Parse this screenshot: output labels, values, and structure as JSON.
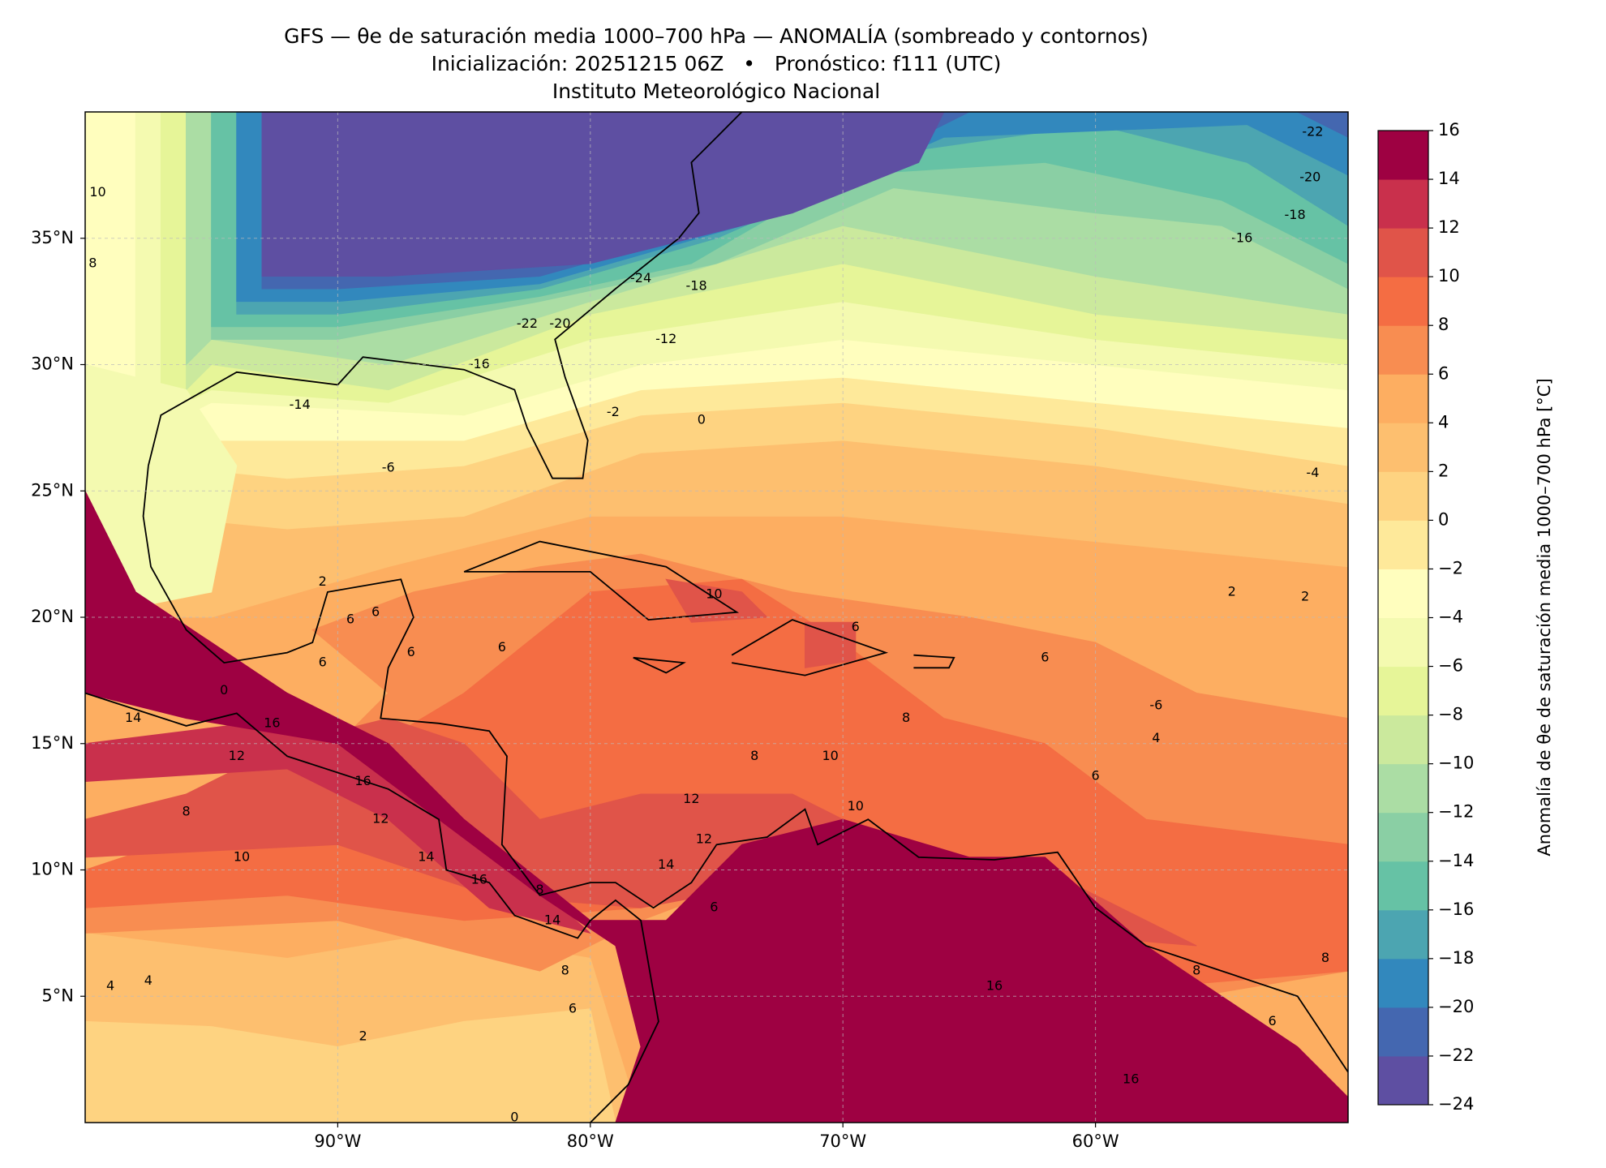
{
  "chart_data": {
    "type": "map",
    "title": "GFS — θe de saturación media 1000–700 hPa — ANOMALÍA (sombreado y contornos)",
    "subtitle": "Inicialización: 20251215 06Z   •   Pronóstico: f111 (UTC)",
    "caption": "Instituto Meteorológico Nacional",
    "xlim": [
      -100,
      -50
    ],
    "ylim": [
      0,
      40
    ],
    "xticks": [
      {
        "value": -90,
        "label": "90°W"
      },
      {
        "value": -80,
        "label": "80°W"
      },
      {
        "value": -70,
        "label": "70°W"
      },
      {
        "value": -60,
        "label": "60°W"
      }
    ],
    "yticks": [
      {
        "value": 5,
        "label": "5°N"
      },
      {
        "value": 10,
        "label": "10°N"
      },
      {
        "value": 15,
        "label": "15°N"
      },
      {
        "value": 20,
        "label": "20°N"
      },
      {
        "value": 25,
        "label": "25°N"
      },
      {
        "value": 30,
        "label": "30°N"
      },
      {
        "value": 35,
        "label": "35°N"
      }
    ],
    "grid": true,
    "colorbar": {
      "label": "Anomalía de θe de saturación media 1000–700 hPa [°C]",
      "lim": [
        -24,
        16
      ],
      "ticks": [
        {
          "value": -24,
          "label": "−24"
        },
        {
          "value": -22,
          "label": "−22"
        },
        {
          "value": -20,
          "label": "−20"
        },
        {
          "value": -18,
          "label": "−18"
        },
        {
          "value": -16,
          "label": "−16"
        },
        {
          "value": -14,
          "label": "−14"
        },
        {
          "value": -12,
          "label": "−12"
        },
        {
          "value": -10,
          "label": "−10"
        },
        {
          "value": -8,
          "label": "−8"
        },
        {
          "value": -6,
          "label": "−6"
        },
        {
          "value": -4,
          "label": "−4"
        },
        {
          "value": -2,
          "label": "−2"
        },
        0,
        2,
        4,
        6,
        8,
        10,
        12,
        14,
        16
      ],
      "colors": [
        "#5e4fa2",
        "#4467b0",
        "#3288bd",
        "#4ca5b1",
        "#66c2a5",
        "#8acfa4",
        "#abdda4",
        "#cbe99d",
        "#e6f598",
        "#f4fab0",
        "#fffebe",
        "#fee99a",
        "#fed381",
        "#fdbf6f",
        "#fdae61",
        "#f88d51",
        "#f46d43",
        "#e05449",
        "#c9304c",
        "#9e0142"
      ]
    },
    "contour_color": "#000000",
    "contour_labels": [
      {
        "lon": -51.4,
        "lat": 39.2,
        "value": -22
      },
      {
        "lon": -51.5,
        "lat": 37.4,
        "value": -20
      },
      {
        "lon": -52.1,
        "lat": 35.9,
        "value": -18
      },
      {
        "lon": -54.2,
        "lat": 35.0,
        "value": -16
      },
      {
        "lon": -78.0,
        "lat": 33.4,
        "value": -24
      },
      {
        "lon": -75.8,
        "lat": 33.1,
        "value": -18
      },
      {
        "lon": -82.5,
        "lat": 31.6,
        "value": -22
      },
      {
        "lon": -81.2,
        "lat": 31.6,
        "value": -20
      },
      {
        "lon": -77.0,
        "lat": 31.0,
        "value": -12
      },
      {
        "lon": -84.4,
        "lat": 30.0,
        "value": -16
      },
      {
        "lon": -91.5,
        "lat": 28.4,
        "value": -14
      },
      {
        "lon": -79.1,
        "lat": 28.1,
        "value": -2
      },
      {
        "lon": -75.6,
        "lat": 27.8,
        "value": 0
      },
      {
        "lon": -88.0,
        "lat": 25.9,
        "value": -6
      },
      {
        "lon": -51.4,
        "lat": 25.7,
        "value": -4
      },
      {
        "lon": -90.6,
        "lat": 21.4,
        "value": 2
      },
      {
        "lon": -75.1,
        "lat": 20.9,
        "value": 10
      },
      {
        "lon": -89.5,
        "lat": 19.9,
        "value": 6
      },
      {
        "lon": -88.5,
        "lat": 20.2,
        "value": 6
      },
      {
        "lon": -69.5,
        "lat": 19.6,
        "value": 6
      },
      {
        "lon": -90.6,
        "lat": 18.2,
        "value": 6
      },
      {
        "lon": -87.1,
        "lat": 18.6,
        "value": 6
      },
      {
        "lon": -83.5,
        "lat": 18.8,
        "value": 6
      },
      {
        "lon": -62.0,
        "lat": 18.4,
        "value": 6
      },
      {
        "lon": -94.5,
        "lat": 17.1,
        "value": 0
      },
      {
        "lon": -98.1,
        "lat": 16.0,
        "value": 14
      },
      {
        "lon": -92.6,
        "lat": 15.8,
        "value": 16
      },
      {
        "lon": -57.6,
        "lat": 16.5,
        "value": -6
      },
      {
        "lon": -57.6,
        "lat": 15.2,
        "value": 4
      },
      {
        "lon": -67.5,
        "lat": 16.0,
        "value": 8
      },
      {
        "lon": -73.5,
        "lat": 14.5,
        "value": 8
      },
      {
        "lon": -70.5,
        "lat": 14.5,
        "value": 10
      },
      {
        "lon": -60.0,
        "lat": 13.7,
        "value": 6
      },
      {
        "lon": -89.0,
        "lat": 13.5,
        "value": 16
      },
      {
        "lon": -94.0,
        "lat": 14.5,
        "value": 12
      },
      {
        "lon": -69.5,
        "lat": 12.5,
        "value": 10
      },
      {
        "lon": -76.0,
        "lat": 12.8,
        "value": 12
      },
      {
        "lon": -96.0,
        "lat": 12.3,
        "value": 8
      },
      {
        "lon": -88.3,
        "lat": 12.0,
        "value": 12
      },
      {
        "lon": -75.5,
        "lat": 11.2,
        "value": 12
      },
      {
        "lon": -93.8,
        "lat": 10.5,
        "value": 10
      },
      {
        "lon": -86.5,
        "lat": 10.5,
        "value": 14
      },
      {
        "lon": -77.0,
        "lat": 10.2,
        "value": 14
      },
      {
        "lon": -84.4,
        "lat": 9.6,
        "value": 16
      },
      {
        "lon": -82.0,
        "lat": 9.2,
        "value": 8
      },
      {
        "lon": -75.1,
        "lat": 8.5,
        "value": 6
      },
      {
        "lon": -81.5,
        "lat": 8.0,
        "value": 14
      },
      {
        "lon": -81.0,
        "lat": 6.0,
        "value": 8
      },
      {
        "lon": -99.0,
        "lat": 5.4,
        "value": 4
      },
      {
        "lon": -97.5,
        "lat": 5.6,
        "value": 4
      },
      {
        "lon": -80.7,
        "lat": 4.5,
        "value": 6
      },
      {
        "lon": -64.0,
        "lat": 5.4,
        "value": 16
      },
      {
        "lon": -56.0,
        "lat": 6.0,
        "value": 8
      },
      {
        "lon": -50.9,
        "lat": 6.5,
        "value": 8
      },
      {
        "lon": -53.0,
        "lat": 4.0,
        "value": 6
      },
      {
        "lon": -89.0,
        "lat": 3.4,
        "value": 2
      },
      {
        "lon": -58.6,
        "lat": 1.7,
        "value": 16
      },
      {
        "lon": -83.0,
        "lat": 0.2,
        "value": 0
      },
      {
        "lon": -51.7,
        "lat": 20.8,
        "value": 2
      },
      {
        "lon": -54.6,
        "lat": 21.0,
        "value": 2
      },
      {
        "lon": -99.5,
        "lat": 36.8,
        "value": 10
      },
      {
        "lon": -99.7,
        "lat": 34.0,
        "value": 8
      }
    ]
  }
}
